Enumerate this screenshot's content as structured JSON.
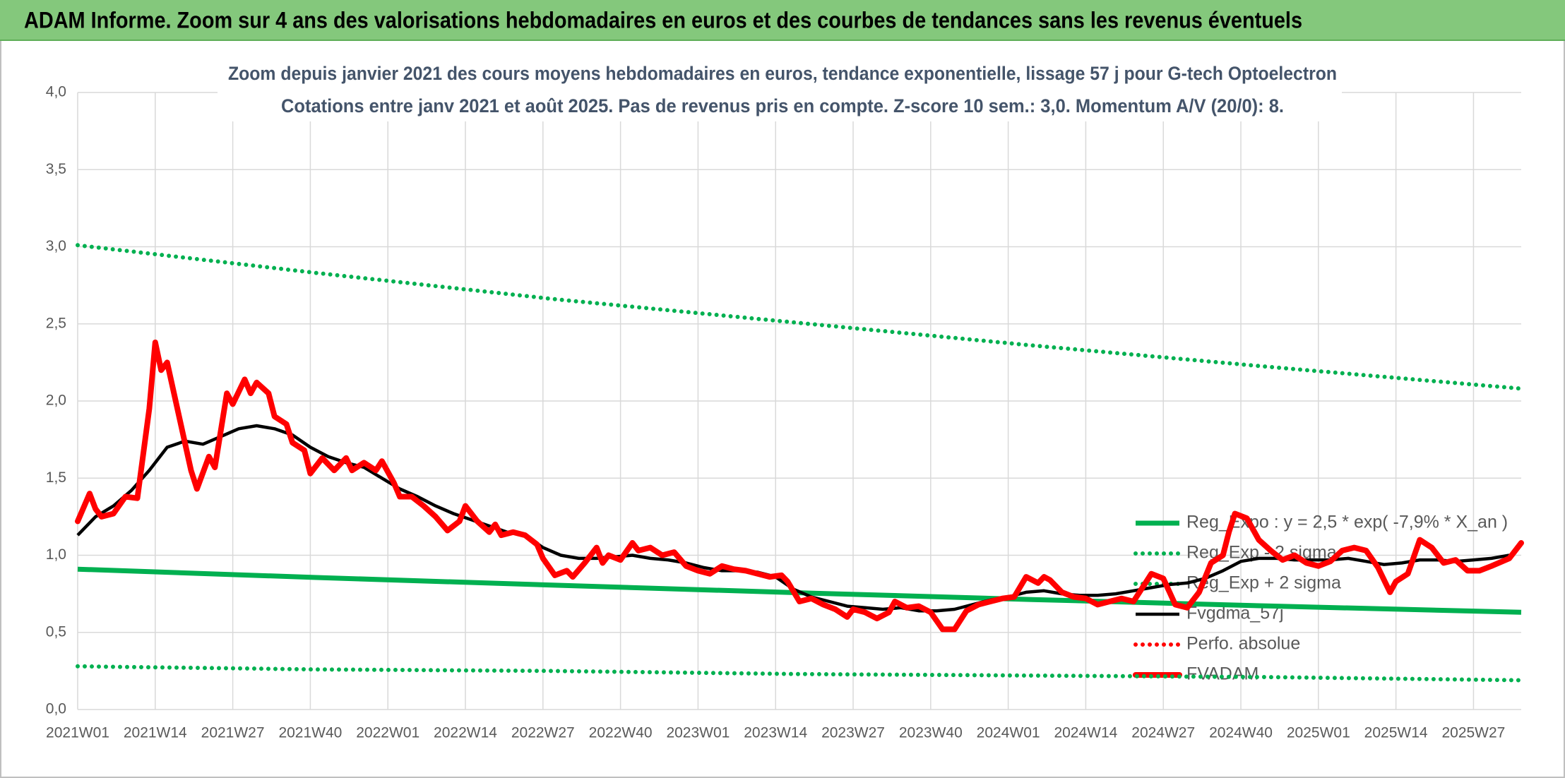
{
  "chart_data": {
    "type": "line",
    "title": "ADAM Informe. Zoom sur 4 ans des valorisations hebdomadaires en euros et des courbes de tendances sans les revenus éventuels",
    "subtitle_lines": [
      "Zoom depuis janvier 2021 des cours moyens hebdomadaires en euros, tendance exponentielle, lissage 57 j pour G-tech Optoelectron",
      "Cotations entre janv 2021 et août 2025. Pas de revenus pris en compte. Z-score 10 sem.: 3,0. Momentum A/V (20/0): 8."
    ],
    "xlim": [
      0,
      242
    ],
    "xticks": [
      {
        "value": 0,
        "label": "2021W01"
      },
      {
        "value": 13,
        "label": "2021W14"
      },
      {
        "value": 26,
        "label": "2021W27"
      },
      {
        "value": 39,
        "label": "2021W40"
      },
      {
        "value": 52,
        "label": "2022W01"
      },
      {
        "value": 65,
        "label": "2022W14"
      },
      {
        "value": 78,
        "label": "2022W27"
      },
      {
        "value": 91,
        "label": "2022W40"
      },
      {
        "value": 104,
        "label": "2023W01"
      },
      {
        "value": 117,
        "label": "2023W14"
      },
      {
        "value": 130,
        "label": "2023W27"
      },
      {
        "value": 143,
        "label": "2023W40"
      },
      {
        "value": 156,
        "label": "2024W01"
      },
      {
        "value": 169,
        "label": "2024W14"
      },
      {
        "value": 182,
        "label": "2024W27"
      },
      {
        "value": 195,
        "label": "2024W40"
      },
      {
        "value": 208,
        "label": "2025W01"
      },
      {
        "value": 221,
        "label": "2025W14"
      },
      {
        "value": 234,
        "label": "2025W27"
      }
    ],
    "ylim": [
      0,
      4
    ],
    "yticks": [
      {
        "value": 0,
        "label": "0,0"
      },
      {
        "value": 0.5,
        "label": "0,5"
      },
      {
        "value": 1,
        "label": "1,0"
      },
      {
        "value": 1.5,
        "label": "1,5"
      },
      {
        "value": 2,
        "label": "2,0"
      },
      {
        "value": 2.5,
        "label": "2,5"
      },
      {
        "value": 3,
        "label": "3,0"
      },
      {
        "value": 3.5,
        "label": "3,5"
      },
      {
        "value": 4,
        "label": "4,0"
      }
    ],
    "grid": true,
    "legend": "right",
    "series": [
      {
        "name": "Reg_Expo : y = 2,5 * exp( -7,9% *  X_an )",
        "color": "#00b050",
        "style": "solid",
        "x": [
          0,
          40,
          80,
          120,
          160,
          200,
          242
        ],
        "values": [
          0.91,
          0.856,
          0.806,
          0.758,
          0.713,
          0.671,
          0.63
        ]
      },
      {
        "name": "Reg_Exp - 2 sigma",
        "color": "#00b050",
        "style": "dotted",
        "x": [
          0,
          40,
          80,
          120,
          160,
          200,
          242
        ],
        "values": [
          0.28,
          0.26,
          0.25,
          0.23,
          0.22,
          0.21,
          0.19
        ]
      },
      {
        "name": "Reg_Exp + 2 sigma",
        "color": "#00b050",
        "style": "dotted",
        "x": [
          0,
          40,
          80,
          120,
          160,
          200,
          242
        ],
        "values": [
          3.01,
          2.83,
          2.66,
          2.51,
          2.36,
          2.22,
          2.08
        ]
      },
      {
        "name": "Fvgdma_57j",
        "color": "#000000",
        "style": "solid",
        "x": [
          0,
          3,
          6,
          9,
          12,
          15,
          18,
          21,
          24,
          27,
          30,
          33,
          36,
          39,
          42,
          45,
          48,
          51,
          54,
          57,
          60,
          63,
          66,
          69,
          72,
          75,
          78,
          81,
          84,
          87,
          90,
          93,
          96,
          99,
          102,
          105,
          108,
          111,
          114,
          117,
          120,
          123,
          126,
          129,
          132,
          135,
          138,
          141,
          144,
          147,
          150,
          153,
          156,
          159,
          162,
          165,
          168,
          171,
          174,
          177,
          180,
          183,
          186,
          189,
          192,
          195,
          198,
          201,
          204,
          207,
          210,
          213,
          216,
          219,
          222,
          225,
          228,
          231,
          234,
          237,
          240
        ],
        "values": [
          1.13,
          1.25,
          1.32,
          1.42,
          1.55,
          1.7,
          1.74,
          1.72,
          1.77,
          1.82,
          1.84,
          1.82,
          1.78,
          1.7,
          1.64,
          1.6,
          1.57,
          1.5,
          1.43,
          1.38,
          1.32,
          1.27,
          1.23,
          1.19,
          1.15,
          1.13,
          1.05,
          1.0,
          0.98,
          0.98,
          0.99,
          1.0,
          0.98,
          0.97,
          0.95,
          0.92,
          0.9,
          0.9,
          0.89,
          0.86,
          0.78,
          0.73,
          0.7,
          0.67,
          0.66,
          0.65,
          0.66,
          0.64,
          0.64,
          0.65,
          0.68,
          0.71,
          0.73,
          0.76,
          0.77,
          0.75,
          0.74,
          0.74,
          0.75,
          0.77,
          0.79,
          0.81,
          0.82,
          0.85,
          0.9,
          0.96,
          0.98,
          0.98,
          0.97,
          0.97,
          0.97,
          0.98,
          0.96,
          0.94,
          0.95,
          0.97,
          0.97,
          0.96,
          0.97,
          0.98,
          1.0
        ]
      },
      {
        "name": "Perfo. absolue",
        "color": "#ff0000",
        "style": "dotted",
        "x": [],
        "values": []
      },
      {
        "name": "FVADAM",
        "color": "#ff0000",
        "style": "thick",
        "x": [
          0,
          2,
          3,
          4,
          6,
          8,
          10,
          12,
          13,
          14,
          15,
          17,
          19,
          20,
          22,
          23,
          25,
          26,
          28,
          29,
          30,
          32,
          33,
          35,
          36,
          38,
          39,
          41,
          43,
          45,
          46,
          48,
          50,
          51,
          53,
          54,
          56,
          58,
          60,
          62,
          64,
          65,
          67,
          69,
          70,
          71,
          73,
          75,
          77,
          78,
          80,
          82,
          83,
          85,
          87,
          88,
          89,
          91,
          93,
          94,
          96,
          98,
          100,
          102,
          104,
          106,
          108,
          110,
          112,
          114,
          116,
          118,
          119,
          121,
          123,
          125,
          127,
          129,
          130,
          132,
          134,
          136,
          137,
          139,
          141,
          143,
          145,
          147,
          149,
          151,
          153,
          155,
          157,
          159,
          161,
          162,
          163,
          165,
          167,
          169,
          171,
          173,
          175,
          177,
          179,
          180,
          182,
          184,
          186,
          188,
          190,
          192,
          193,
          194,
          196,
          198,
          200,
          202,
          204,
          206,
          208,
          210,
          212,
          214,
          216,
          218,
          220,
          221,
          223,
          225,
          227,
          229,
          231,
          233,
          235,
          237,
          240,
          242
        ],
        "values": [
          1.22,
          1.4,
          1.3,
          1.25,
          1.27,
          1.38,
          1.37,
          1.95,
          2.38,
          2.2,
          2.25,
          1.9,
          1.55,
          1.43,
          1.64,
          1.57,
          2.05,
          1.98,
          2.14,
          2.05,
          2.12,
          2.05,
          1.9,
          1.85,
          1.73,
          1.68,
          1.53,
          1.63,
          1.55,
          1.63,
          1.55,
          1.6,
          1.55,
          1.61,
          1.47,
          1.38,
          1.38,
          1.32,
          1.25,
          1.16,
          1.22,
          1.32,
          1.22,
          1.15,
          1.2,
          1.13,
          1.15,
          1.13,
          1.07,
          0.98,
          0.87,
          0.9,
          0.86,
          0.95,
          1.05,
          0.95,
          1.0,
          0.97,
          1.08,
          1.03,
          1.05,
          1.0,
          1.02,
          0.93,
          0.9,
          0.88,
          0.93,
          0.91,
          0.9,
          0.88,
          0.86,
          0.87,
          0.83,
          0.7,
          0.72,
          0.68,
          0.65,
          0.6,
          0.65,
          0.63,
          0.59,
          0.63,
          0.7,
          0.66,
          0.67,
          0.63,
          0.52,
          0.52,
          0.64,
          0.68,
          0.7,
          0.72,
          0.73,
          0.86,
          0.82,
          0.86,
          0.84,
          0.76,
          0.73,
          0.72,
          0.68,
          0.7,
          0.72,
          0.7,
          0.82,
          0.88,
          0.85,
          0.68,
          0.66,
          0.76,
          0.95,
          1.0,
          1.15,
          1.27,
          1.24,
          1.1,
          1.03,
          0.97,
          1.0,
          0.95,
          0.93,
          0.96,
          1.03,
          1.05,
          1.03,
          0.92,
          0.76,
          0.83,
          0.88,
          1.1,
          1.05,
          0.95,
          0.97,
          0.9,
          0.9,
          0.93,
          0.98,
          1.08
        ]
      }
    ]
  }
}
